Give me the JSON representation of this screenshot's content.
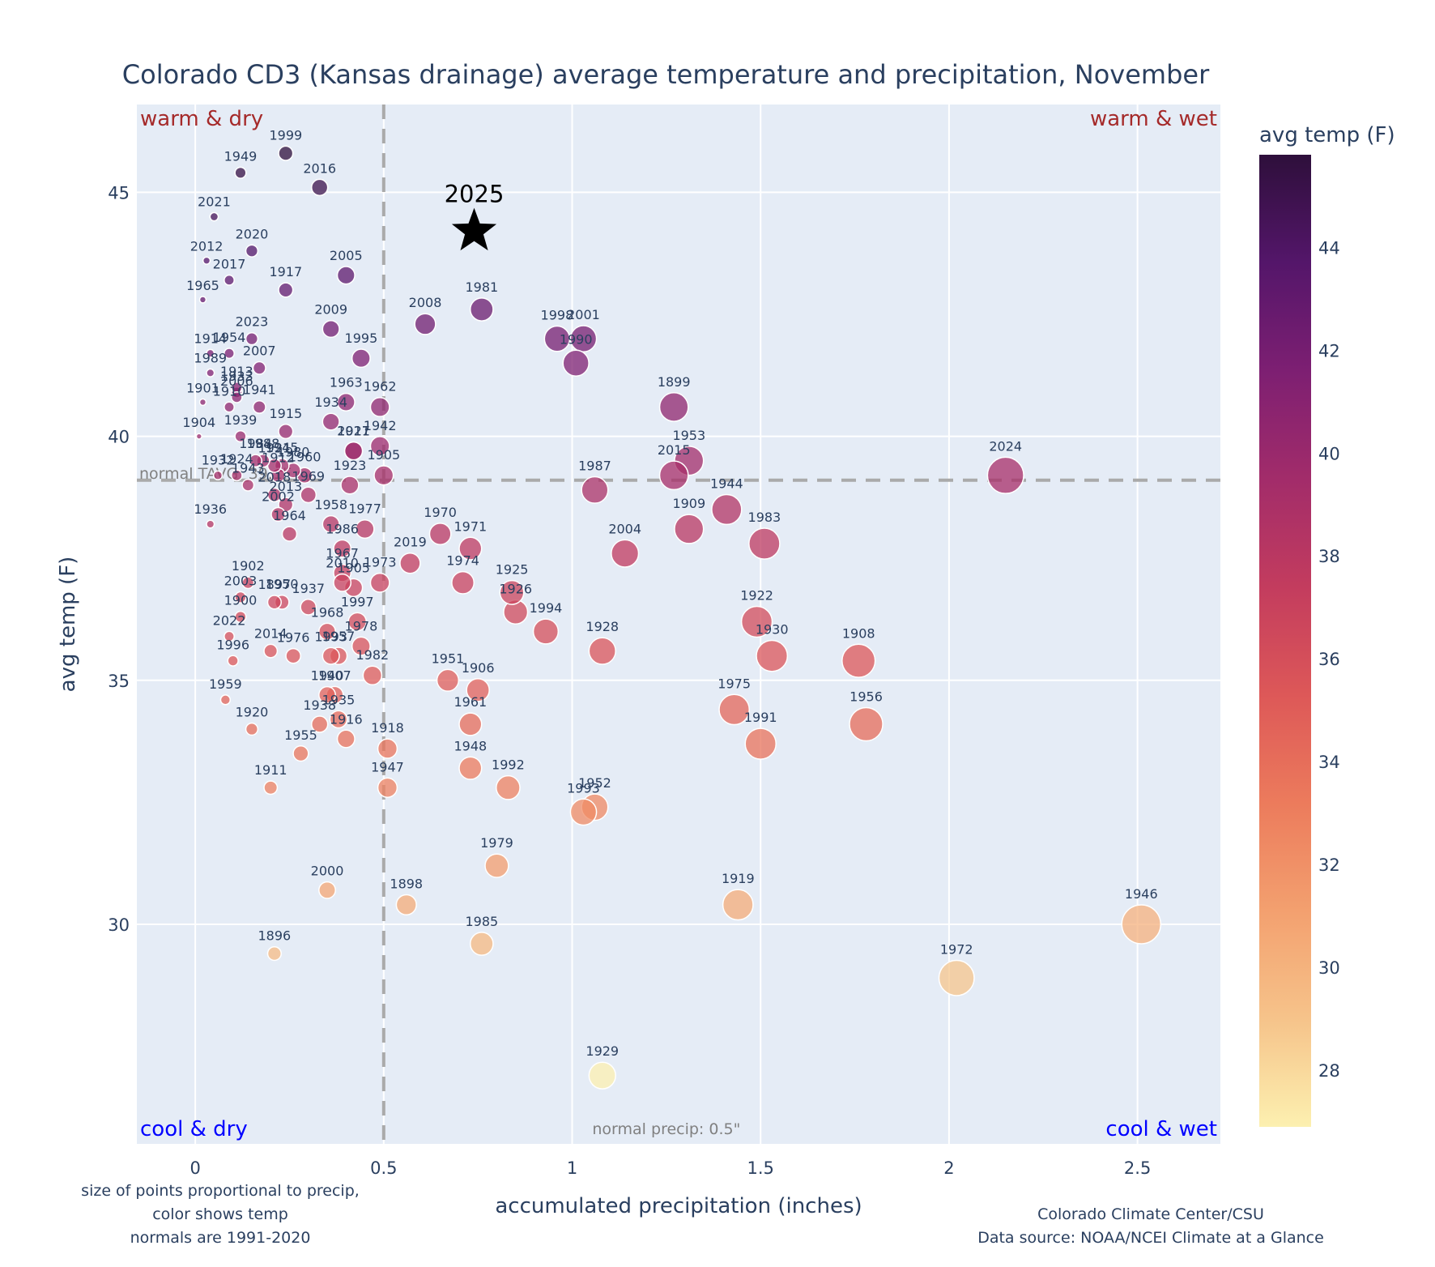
{
  "chart_data": {
    "type": "scatter",
    "title": "Colorado CD3 (Kansas drainage) average temperature and precipitation, November",
    "xlabel": "accumulated precipitation (inches)",
    "ylabel": "avg temp (F)",
    "xlim": [
      -0.155,
      2.72
    ],
    "ylim": [
      25.5,
      46.8
    ],
    "xticks": [
      0,
      0.5,
      1,
      1.5,
      2,
      2.5
    ],
    "xtick_labels": [
      "0",
      "0.5",
      "1",
      "1.5",
      "2",
      "2.5"
    ],
    "yticks": [
      30,
      35,
      40,
      45
    ],
    "ytick_labels": [
      "30",
      "35",
      "40",
      "45"
    ],
    "grid": true,
    "normal_temp": 39.1,
    "normal_temp_label": "normal TAVG: 39.1F",
    "normal_precip": 0.5,
    "normal_precip_label": "normal precip: 0.5\"",
    "quadrant_labels": {
      "top_left": "warm & dry",
      "top_right": "warm & wet",
      "bottom_left": "cool & dry",
      "bottom_right": "cool & wet"
    },
    "colorbar": {
      "title": "avg temp (F)",
      "range": [
        26.9,
        45.8
      ],
      "ticks": [
        28,
        30,
        32,
        34,
        36,
        38,
        40,
        42,
        44
      ],
      "colorscale": [
        "#fcf0b0",
        "#f6c38a",
        "#f3a06f",
        "#ec7b5c",
        "#dd5858",
        "#c33c5e",
        "#a22c6a",
        "#7d1f72",
        "#54166a",
        "#2e0f3b"
      ]
    },
    "highlight": {
      "label": "2025",
      "x": 0.74,
      "y": 44.2,
      "marker": "star",
      "color": "#000000"
    },
    "points": [
      {
        "year": "1999",
        "x": 0.24,
        "y": 45.8
      },
      {
        "year": "1949",
        "x": 0.12,
        "y": 45.4
      },
      {
        "year": "2016",
        "x": 0.33,
        "y": 45.1
      },
      {
        "year": "2021",
        "x": 0.05,
        "y": 44.5
      },
      {
        "year": "2020",
        "x": 0.15,
        "y": 43.8
      },
      {
        "year": "2012",
        "x": 0.03,
        "y": 43.6
      },
      {
        "year": "2017",
        "x": 0.09,
        "y": 43.2
      },
      {
        "year": "1917",
        "x": 0.24,
        "y": 43.0
      },
      {
        "year": "2005",
        "x": 0.4,
        "y": 43.3
      },
      {
        "year": "1965",
        "x": 0.02,
        "y": 42.8
      },
      {
        "year": "2008",
        "x": 0.61,
        "y": 42.3
      },
      {
        "year": "1981",
        "x": 0.76,
        "y": 42.6
      },
      {
        "year": "1998",
        "x": 0.96,
        "y": 42.0
      },
      {
        "year": "2001",
        "x": 1.03,
        "y": 42.0
      },
      {
        "year": "1990",
        "x": 1.01,
        "y": 41.5
      },
      {
        "year": "2009",
        "x": 0.36,
        "y": 42.2
      },
      {
        "year": "2023",
        "x": 0.15,
        "y": 42.0
      },
      {
        "year": "1954",
        "x": 0.09,
        "y": 41.7
      },
      {
        "year": "1914",
        "x": 0.04,
        "y": 41.7
      },
      {
        "year": "2007",
        "x": 0.17,
        "y": 41.4
      },
      {
        "year": "1995",
        "x": 0.44,
        "y": 41.6
      },
      {
        "year": "1989",
        "x": 0.04,
        "y": 41.3
      },
      {
        "year": "1933",
        "x": 0.11,
        "y": 40.9
      },
      {
        "year": "1913",
        "x": 0.11,
        "y": 41.0
      },
      {
        "year": "1901",
        "x": 0.02,
        "y": 40.7
      },
      {
        "year": "2006",
        "x": 0.11,
        "y": 40.8
      },
      {
        "year": "1941",
        "x": 0.17,
        "y": 40.6
      },
      {
        "year": "1963",
        "x": 0.4,
        "y": 40.7
      },
      {
        "year": "1934",
        "x": 0.36,
        "y": 40.3
      },
      {
        "year": "1962",
        "x": 0.49,
        "y": 40.6
      },
      {
        "year": "1899",
        "x": 1.27,
        "y": 40.6
      },
      {
        "year": "1910",
        "x": 0.09,
        "y": 40.6
      },
      {
        "year": "1915",
        "x": 0.24,
        "y": 40.1
      },
      {
        "year": "1904",
        "x": 0.01,
        "y": 40.0
      },
      {
        "year": "1939",
        "x": 0.12,
        "y": 40.0
      },
      {
        "year": "1927",
        "x": 0.42,
        "y": 39.7
      },
      {
        "year": "1942",
        "x": 0.49,
        "y": 39.8
      },
      {
        "year": "1953",
        "x": 1.31,
        "y": 39.5
      },
      {
        "year": "2015",
        "x": 1.27,
        "y": 39.2
      },
      {
        "year": "1987",
        "x": 1.06,
        "y": 38.9
      },
      {
        "year": "2024",
        "x": 2.15,
        "y": 39.2
      },
      {
        "year": "1944",
        "x": 1.41,
        "y": 38.5
      },
      {
        "year": "1909",
        "x": 1.31,
        "y": 38.1
      },
      {
        "year": "1983",
        "x": 1.51,
        "y": 37.8
      },
      {
        "year": "2004",
        "x": 1.14,
        "y": 37.6
      },
      {
        "year": "1970",
        "x": 0.65,
        "y": 38.0
      },
      {
        "year": "1971",
        "x": 0.73,
        "y": 37.7
      },
      {
        "year": "2019",
        "x": 0.57,
        "y": 37.4
      },
      {
        "year": "1974",
        "x": 0.71,
        "y": 37.0
      },
      {
        "year": "1925",
        "x": 0.84,
        "y": 36.8
      },
      {
        "year": "1926",
        "x": 0.85,
        "y": 36.4
      },
      {
        "year": "1994",
        "x": 0.93,
        "y": 36.0
      },
      {
        "year": "1928",
        "x": 1.08,
        "y": 35.6
      },
      {
        "year": "1922",
        "x": 1.49,
        "y": 36.2
      },
      {
        "year": "1930",
        "x": 1.53,
        "y": 35.5
      },
      {
        "year": "1908",
        "x": 1.76,
        "y": 35.4
      },
      {
        "year": "1975",
        "x": 1.43,
        "y": 34.4
      },
      {
        "year": "1991",
        "x": 1.5,
        "y": 33.7
      },
      {
        "year": "1956",
        "x": 1.78,
        "y": 34.1
      },
      {
        "year": "1984",
        "x": 0.16,
        "y": 39.5
      },
      {
        "year": "1988",
        "x": 0.18,
        "y": 39.5
      },
      {
        "year": "1921",
        "x": 0.21,
        "y": 39.4
      },
      {
        "year": "1945",
        "x": 0.23,
        "y": 39.4
      },
      {
        "year": "1932",
        "x": 0.06,
        "y": 39.2
      },
      {
        "year": "1924",
        "x": 0.11,
        "y": 39.2
      },
      {
        "year": "1943",
        "x": 0.14,
        "y": 39.0
      },
      {
        "year": "1912",
        "x": 0.22,
        "y": 39.2
      },
      {
        "year": "1980",
        "x": 0.26,
        "y": 39.3
      },
      {
        "year": "1960",
        "x": 0.29,
        "y": 39.2
      },
      {
        "year": "2018",
        "x": 0.21,
        "y": 38.8
      },
      {
        "year": "2013",
        "x": 0.24,
        "y": 38.6
      },
      {
        "year": "2002",
        "x": 0.22,
        "y": 38.4
      },
      {
        "year": "1969",
        "x": 0.3,
        "y": 38.8
      },
      {
        "year": "1958",
        "x": 0.36,
        "y": 38.2
      },
      {
        "year": "1964",
        "x": 0.25,
        "y": 38.0
      },
      {
        "year": "1977",
        "x": 0.45,
        "y": 38.1
      },
      {
        "year": "1986",
        "x": 0.39,
        "y": 37.7
      },
      {
        "year": "2011",
        "x": 0.42,
        "y": 39.7
      },
      {
        "year": "1923",
        "x": 0.41,
        "y": 39.0
      },
      {
        "year": "1905b",
        "x": 0.5,
        "y": 39.2
      },
      {
        "year": "1936",
        "x": 0.04,
        "y": 38.2
      },
      {
        "year": "1967",
        "x": 0.39,
        "y": 37.2
      },
      {
        "year": "2010",
        "x": 0.39,
        "y": 37.0
      },
      {
        "year": "1905",
        "x": 0.42,
        "y": 36.9
      },
      {
        "year": "1973",
        "x": 0.49,
        "y": 37.0
      },
      {
        "year": "1902",
        "x": 0.14,
        "y": 37.0
      },
      {
        "year": "2003",
        "x": 0.12,
        "y": 36.7
      },
      {
        "year": "1897",
        "x": 0.21,
        "y": 36.6
      },
      {
        "year": "1950",
        "x": 0.23,
        "y": 36.6
      },
      {
        "year": "1937",
        "x": 0.3,
        "y": 36.5
      },
      {
        "year": "1900",
        "x": 0.12,
        "y": 36.3
      },
      {
        "year": "1968",
        "x": 0.35,
        "y": 36.0
      },
      {
        "year": "1997",
        "x": 0.43,
        "y": 36.2
      },
      {
        "year": "2022",
        "x": 0.09,
        "y": 35.9
      },
      {
        "year": "2014",
        "x": 0.2,
        "y": 35.6
      },
      {
        "year": "1976",
        "x": 0.26,
        "y": 35.5
      },
      {
        "year": "1993b",
        "x": 0.36,
        "y": 35.5
      },
      {
        "year": "1957",
        "x": 0.38,
        "y": 35.5
      },
      {
        "year": "1978",
        "x": 0.44,
        "y": 35.7
      },
      {
        "year": "1996",
        "x": 0.1,
        "y": 35.4
      },
      {
        "year": "1982",
        "x": 0.47,
        "y": 35.1
      },
      {
        "year": "1940",
        "x": 0.35,
        "y": 34.7
      },
      {
        "year": "1907",
        "x": 0.37,
        "y": 34.7
      },
      {
        "year": "1959",
        "x": 0.08,
        "y": 34.6
      },
      {
        "year": "1938",
        "x": 0.33,
        "y": 34.1
      },
      {
        "year": "1935",
        "x": 0.38,
        "y": 34.2
      },
      {
        "year": "1920",
        "x": 0.15,
        "y": 34.0
      },
      {
        "year": "1916",
        "x": 0.4,
        "y": 33.8
      },
      {
        "year": "1918",
        "x": 0.51,
        "y": 33.6
      },
      {
        "year": "1955",
        "x": 0.28,
        "y": 33.5
      },
      {
        "year": "1947",
        "x": 0.51,
        "y": 32.8
      },
      {
        "year": "1911",
        "x": 0.2,
        "y": 32.8
      },
      {
        "year": "1951",
        "x": 0.67,
        "y": 35.0
      },
      {
        "year": "1906",
        "x": 0.75,
        "y": 34.8
      },
      {
        "year": "1961",
        "x": 0.73,
        "y": 34.1
      },
      {
        "year": "1948",
        "x": 0.73,
        "y": 33.2
      },
      {
        "year": "1992",
        "x": 0.83,
        "y": 32.8
      },
      {
        "year": "1993",
        "x": 1.03,
        "y": 32.3
      },
      {
        "year": "1952",
        "x": 1.06,
        "y": 32.4
      },
      {
        "year": "1979",
        "x": 0.8,
        "y": 31.2
      },
      {
        "year": "1919",
        "x": 1.44,
        "y": 30.4
      },
      {
        "year": "2000",
        "x": 0.35,
        "y": 30.7
      },
      {
        "year": "1898",
        "x": 0.56,
        "y": 30.4
      },
      {
        "year": "1985",
        "x": 0.76,
        "y": 29.6
      },
      {
        "year": "1896",
        "x": 0.21,
        "y": 29.4
      },
      {
        "year": "1946",
        "x": 2.51,
        "y": 30.0
      },
      {
        "year": "1972",
        "x": 2.02,
        "y": 28.9
      },
      {
        "year": "1929",
        "x": 1.08,
        "y": 26.9
      }
    ]
  },
  "notes": {
    "left": [
      "size of points proportional to precip,",
      "color shows temp",
      "normals are 1991-2020"
    ],
    "right": [
      "Colorado Climate Center/CSU",
      "Data source: NOAA/NCEI Climate at a Glance"
    ]
  }
}
